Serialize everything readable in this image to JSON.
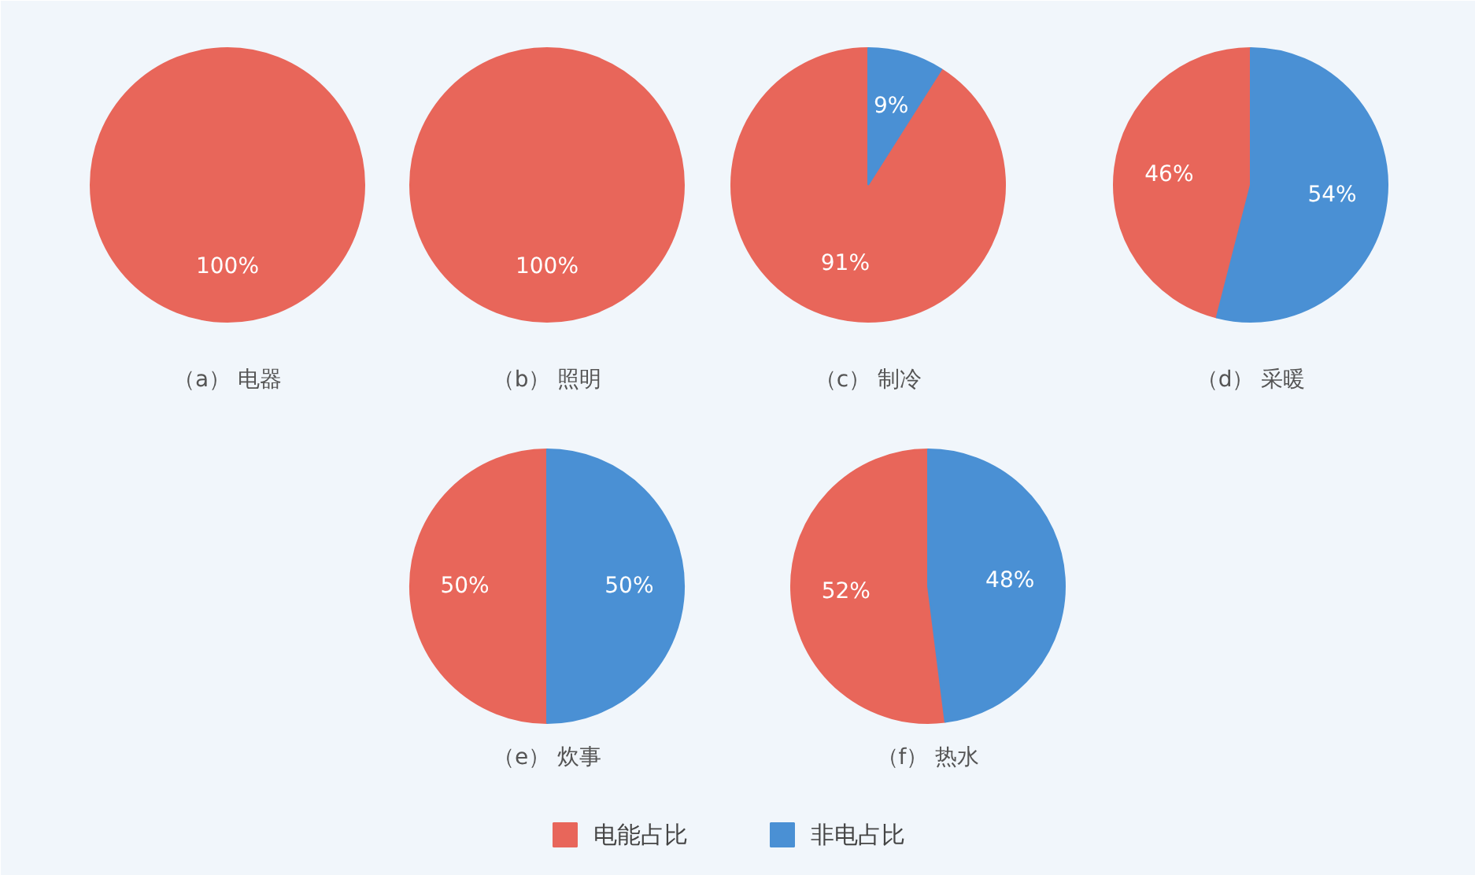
{
  "chart_data": [
    {
      "type": "pie",
      "title": "（a） 电器",
      "categories": [
        "电能占比",
        "非电占比"
      ],
      "values": [
        100,
        0
      ],
      "colors": [
        "#e8665a",
        "#4a90d4"
      ],
      "value_labels": [
        "100%",
        null
      ],
      "legend": "bottom"
    },
    {
      "type": "pie",
      "title": "（b） 照明",
      "categories": [
        null,
        null
      ],
      "values": [
        100,
        0
      ],
      "colors": [
        "#e8665a",
        "#4a90d4"
      ],
      "value_labels": [
        "100%",
        null
      ]
    },
    {
      "type": "pie",
      "title": "（c） 制冷",
      "categories": [
        null,
        null
      ],
      "values": [
        91,
        9
      ],
      "colors": [
        "#e8665a",
        "#4a90d4"
      ],
      "value_labels": [
        "91%",
        "9%"
      ]
    },
    {
      "type": "pie",
      "title": "（d） 采暖",
      "categories": [
        null,
        null
      ],
      "values": [
        46,
        54
      ],
      "colors": [
        "#e8665a",
        "#4a90d4"
      ],
      "value_labels": [
        "46%",
        "54%"
      ]
    },
    {
      "type": "pie",
      "title": "（e） 炊事",
      "categories": [
        null,
        null
      ],
      "values": [
        50,
        50
      ],
      "colors": [
        "#e8665a",
        "#4a90d4"
      ],
      "value_labels": [
        "50%",
        "50%"
      ]
    },
    {
      "type": "pie",
      "title": "（f） 热水",
      "categories": [
        null,
        null
      ],
      "values": [
        52,
        48
      ],
      "colors": [
        "#e8665a",
        "#4a90d4"
      ],
      "value_labels": [
        "52%",
        "48%"
      ]
    }
  ]
}
